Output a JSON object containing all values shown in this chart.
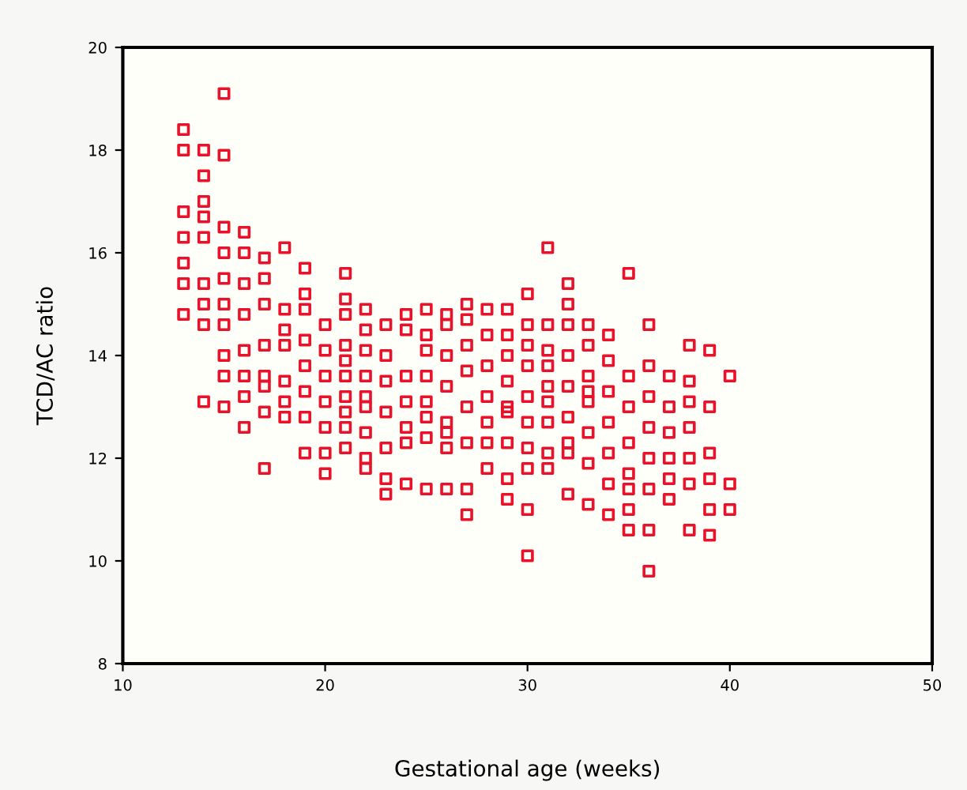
{
  "chart_data": {
    "type": "scatter",
    "xlabel": "Gestational age (weeks)",
    "ylabel": "TCD/AC ratio",
    "xlim": [
      10,
      50
    ],
    "xticks": [
      10,
      20,
      30,
      40,
      50
    ],
    "ylim": [
      8,
      20
    ],
    "yticks": [
      8,
      10,
      12,
      14,
      16,
      18,
      20
    ],
    "grid": false,
    "marker": "square",
    "series": [
      {
        "color": "#e8122a",
        "x": [
          13,
          13,
          13,
          13,
          13,
          13,
          13,
          14,
          14,
          14,
          14,
          14,
          14,
          14,
          14,
          14,
          15,
          15,
          15,
          15,
          15,
          15,
          15,
          15,
          15,
          15,
          16,
          16,
          16,
          16,
          16,
          16,
          16,
          16,
          17,
          17,
          17,
          17,
          17,
          17,
          17,
          17,
          18,
          18,
          18,
          18,
          18,
          18,
          18,
          19,
          19,
          19,
          19,
          19,
          19,
          19,
          19,
          20,
          20,
          20,
          20,
          20,
          20,
          20,
          21,
          21,
          21,
          21,
          21,
          21,
          21,
          21,
          21,
          21,
          22,
          22,
          22,
          22,
          22,
          22,
          22,
          22,
          22,
          23,
          23,
          23,
          23,
          23,
          23,
          23,
          24,
          24,
          24,
          24,
          24,
          24,
          24,
          25,
          25,
          25,
          25,
          25,
          25,
          25,
          25,
          26,
          26,
          26,
          26,
          26,
          26,
          26,
          26,
          27,
          27,
          27,
          27,
          27,
          27,
          27,
          27,
          28,
          28,
          28,
          28,
          28,
          28,
          28,
          29,
          29,
          29,
          29,
          29,
          29,
          29,
          29,
          29,
          30,
          30,
          30,
          30,
          30,
          30,
          30,
          30,
          30,
          30,
          31,
          31,
          31,
          31,
          31,
          31,
          31,
          31,
          31,
          32,
          32,
          32,
          32,
          32,
          32,
          32,
          32,
          32,
          33,
          33,
          33,
          33,
          33,
          33,
          33,
          33,
          34,
          34,
          34,
          34,
          34,
          34,
          34,
          35,
          35,
          35,
          35,
          35,
          35,
          35,
          35,
          36,
          36,
          36,
          36,
          36,
          36,
          36,
          36,
          37,
          37,
          37,
          37,
          37,
          37,
          38,
          38,
          38,
          38,
          38,
          38,
          38,
          39,
          39,
          39,
          39,
          39,
          39,
          40,
          40,
          40
        ],
        "values": [
          18.4,
          18.0,
          16.8,
          16.3,
          15.8,
          15.4,
          14.8,
          18.0,
          17.5,
          17.0,
          16.7,
          16.3,
          15.4,
          15.0,
          14.6,
          13.1,
          19.1,
          17.9,
          16.5,
          16.0,
          15.5,
          15.0,
          14.6,
          14.0,
          13.6,
          13.0,
          16.4,
          16.0,
          15.4,
          14.8,
          14.1,
          13.6,
          13.2,
          12.6,
          15.9,
          15.5,
          15.0,
          14.2,
          13.6,
          13.4,
          12.9,
          11.8,
          16.1,
          14.9,
          14.5,
          14.2,
          13.5,
          13.1,
          12.8,
          15.7,
          15.2,
          14.9,
          14.3,
          13.8,
          13.3,
          12.8,
          12.1,
          14.6,
          14.1,
          13.6,
          13.1,
          12.6,
          12.1,
          11.7,
          15.6,
          15.1,
          14.8,
          14.2,
          13.9,
          13.6,
          13.2,
          12.9,
          12.6,
          12.2,
          14.9,
          14.5,
          14.1,
          13.6,
          13.2,
          13.0,
          12.5,
          12.0,
          11.8,
          14.6,
          14.0,
          13.5,
          12.9,
          12.2,
          11.6,
          11.3,
          14.8,
          14.5,
          13.6,
          13.1,
          12.6,
          12.3,
          11.5,
          14.9,
          14.4,
          14.1,
          13.6,
          13.1,
          12.8,
          12.4,
          11.4,
          14.8,
          14.6,
          14.0,
          13.4,
          12.7,
          12.5,
          12.2,
          11.4,
          15.0,
          14.7,
          14.2,
          13.7,
          13.0,
          12.3,
          11.4,
          10.9,
          14.9,
          14.4,
          13.8,
          13.2,
          12.7,
          12.3,
          11.8,
          14.9,
          14.4,
          14.0,
          13.5,
          13.0,
          12.9,
          12.3,
          11.6,
          11.2,
          15.2,
          14.6,
          14.2,
          13.8,
          13.2,
          12.7,
          12.2,
          11.8,
          11.0,
          10.1,
          16.1,
          14.6,
          14.1,
          13.8,
          13.4,
          13.1,
          12.7,
          12.1,
          11.8,
          15.4,
          15.0,
          14.6,
          14.0,
          13.4,
          12.8,
          12.3,
          12.1,
          11.3,
          14.6,
          14.2,
          13.6,
          13.3,
          13.1,
          12.5,
          11.9,
          11.1,
          14.4,
          13.9,
          13.3,
          12.7,
          12.1,
          11.5,
          10.9,
          15.6,
          13.6,
          13.0,
          12.3,
          11.7,
          11.4,
          11.0,
          10.6,
          14.6,
          13.8,
          13.2,
          12.6,
          12.0,
          11.4,
          10.6,
          9.8,
          13.6,
          13.0,
          12.5,
          12.0,
          11.6,
          11.2,
          14.2,
          13.5,
          13.1,
          12.6,
          12.0,
          11.5,
          10.6,
          14.1,
          13.0,
          12.1,
          11.6,
          11.0,
          10.5,
          13.6,
          11.5,
          11.0
        ]
      }
    ]
  }
}
